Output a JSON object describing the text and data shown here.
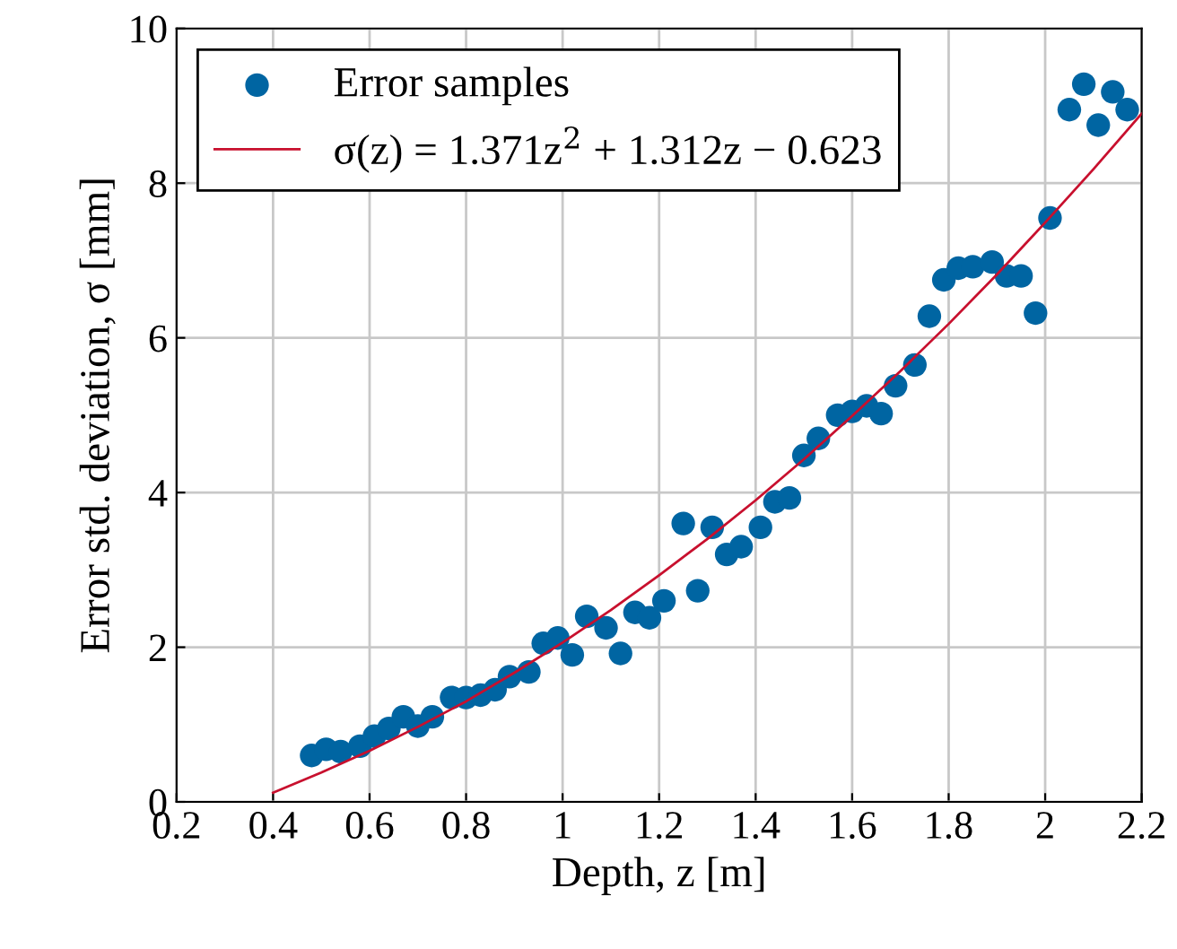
{
  "chart_data": {
    "type": "scatter",
    "xlabel": "Depth, z [m]",
    "ylabel": "Error std. deviation, σ [mm]",
    "xlim": [
      0.2,
      2.2
    ],
    "ylim": [
      0,
      10
    ],
    "xticks": [
      0.2,
      0.4,
      0.6,
      0.8,
      1,
      1.2,
      1.4,
      1.6,
      1.8,
      2,
      2.2
    ],
    "yticks": [
      0,
      2,
      4,
      6,
      8,
      10
    ],
    "grid": true,
    "legend": "top left",
    "series": [
      {
        "name": "Error samples",
        "color": "#0065a2",
        "marker": "circle",
        "x": [
          0.48,
          0.51,
          0.54,
          0.58,
          0.61,
          0.64,
          0.67,
          0.7,
          0.73,
          0.77,
          0.8,
          0.83,
          0.86,
          0.89,
          0.93,
          0.96,
          0.99,
          1.02,
          1.05,
          1.09,
          1.12,
          1.15,
          1.18,
          1.21,
          1.25,
          1.28,
          1.31,
          1.34,
          1.37,
          1.41,
          1.44,
          1.47,
          1.5,
          1.53,
          1.57,
          1.6,
          1.63,
          1.66,
          1.69,
          1.73,
          1.76,
          1.79,
          1.82,
          1.85,
          1.89,
          1.92,
          1.95,
          1.98,
          2.01,
          2.05,
          2.08,
          2.11,
          2.14,
          2.17
        ],
        "values": [
          0.6,
          0.68,
          0.65,
          0.72,
          0.85,
          0.95,
          1.1,
          0.98,
          1.1,
          1.35,
          1.35,
          1.38,
          1.45,
          1.62,
          1.68,
          2.05,
          2.12,
          1.9,
          2.4,
          2.25,
          1.92,
          2.45,
          2.38,
          2.6,
          3.6,
          2.73,
          3.55,
          3.2,
          3.3,
          3.55,
          3.88,
          3.93,
          4.48,
          4.7,
          5.0,
          5.05,
          5.12,
          5.02,
          5.38,
          5.65,
          6.28,
          6.75,
          6.9,
          6.92,
          6.98,
          6.8,
          6.8,
          6.32,
          7.55,
          8.95,
          9.28,
          8.75,
          9.18,
          8.95
        ]
      },
      {
        "name": "σ(z) = 1.371z$^{2}$ + 1.312z − 0.623",
        "color": "#c8102e",
        "type": "line",
        "line_style": "solid",
        "marker": "none",
        "x": [
          0.4,
          0.5,
          0.6,
          0.7,
          0.8,
          0.9,
          1.0,
          1.1,
          1.2,
          1.3,
          1.4,
          1.5,
          1.6,
          1.7,
          1.8,
          1.9,
          2.0,
          2.1,
          2.2
        ],
        "values": [
          0.12,
          0.38,
          0.66,
          0.97,
          1.3,
          1.67,
          2.06,
          2.48,
          2.93,
          3.4,
          3.9,
          4.43,
          4.99,
          5.57,
          6.18,
          6.82,
          7.49,
          8.18,
          8.9
        ]
      }
    ]
  }
}
